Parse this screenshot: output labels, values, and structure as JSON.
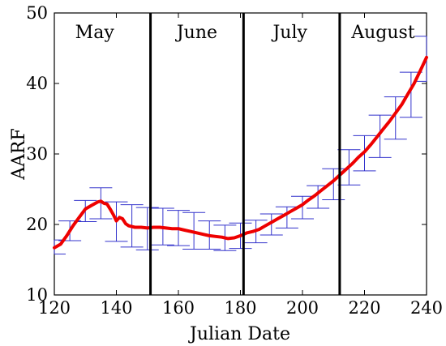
{
  "chart_data": {
    "type": "line",
    "title": "",
    "xlabel": "Julian Date",
    "ylabel": "AARF",
    "xlim": [
      120,
      240
    ],
    "ylim": [
      10,
      50
    ],
    "xticks": [
      120,
      140,
      160,
      180,
      200,
      220,
      240
    ],
    "yticks": [
      10,
      20,
      30,
      40,
      50
    ],
    "grid": false,
    "colors": {
      "line": "#ee0000",
      "errorbar": "#3333cc",
      "divider": "#000000"
    },
    "month_dividers": [
      151,
      181,
      212
    ],
    "month_labels": [
      {
        "text": "May",
        "x": 133
      },
      {
        "text": "June",
        "x": 166
      },
      {
        "text": "July",
        "x": 196
      },
      {
        "text": "August",
        "x": 226
      }
    ],
    "series": [
      {
        "x": [
          120,
          122,
          124,
          126,
          128,
          130,
          132,
          134,
          135,
          136,
          137,
          138,
          139,
          140,
          141,
          142,
          143,
          144,
          146,
          148,
          150,
          152,
          154,
          156,
          158,
          160,
          162,
          164,
          166,
          168,
          170,
          172,
          174,
          176,
          178,
          180,
          182,
          184,
          186,
          188,
          190,
          192,
          194,
          196,
          198,
          200,
          202,
          204,
          206,
          208,
          210,
          212,
          214,
          216,
          218,
          220,
          222,
          224,
          226,
          228,
          230,
          232,
          234,
          236,
          238,
          240
        ],
        "values": [
          16.7,
          17.2,
          18.4,
          19.8,
          21.0,
          22.2,
          22.7,
          23.2,
          23.3,
          23.0,
          22.9,
          22.2,
          21.4,
          20.5,
          21.0,
          20.8,
          20.1,
          19.8,
          19.6,
          19.6,
          19.5,
          19.6,
          19.6,
          19.5,
          19.4,
          19.4,
          19.2,
          19.0,
          18.8,
          18.6,
          18.4,
          18.3,
          18.2,
          18.0,
          18.1,
          18.4,
          18.8,
          19.0,
          19.3,
          19.8,
          20.3,
          20.8,
          21.3,
          21.8,
          22.3,
          22.8,
          23.5,
          24.1,
          24.8,
          25.5,
          26.2,
          27.0,
          27.8,
          28.6,
          29.5,
          30.3,
          31.3,
          32.4,
          33.5,
          34.6,
          35.8,
          37.0,
          38.5,
          40.0,
          41.8,
          43.7
        ]
      }
    ],
    "error_bars": {
      "x": [
        120,
        125,
        130,
        135,
        140,
        145,
        150,
        155,
        160,
        165,
        170,
        175,
        180,
        185,
        190,
        195,
        200,
        205,
        210,
        215,
        220,
        225,
        230,
        235,
        240
      ],
      "y": [
        16.8,
        19.1,
        21.9,
        23.0,
        20.4,
        19.8,
        19.4,
        19.7,
        19.5,
        19.1,
        18.5,
        18.1,
        18.4,
        19.0,
        20.0,
        21.0,
        22.4,
        23.9,
        25.7,
        28.1,
        30.1,
        32.5,
        35.1,
        38.4,
        43.5
      ],
      "err": [
        1.0,
        1.4,
        1.5,
        2.2,
        2.8,
        3.0,
        3.0,
        2.6,
        2.5,
        2.6,
        2.0,
        1.8,
        1.8,
        1.6,
        1.5,
        1.5,
        1.6,
        1.6,
        2.2,
        2.5,
        2.5,
        3.0,
        3.0,
        3.2,
        3.2
      ]
    }
  }
}
